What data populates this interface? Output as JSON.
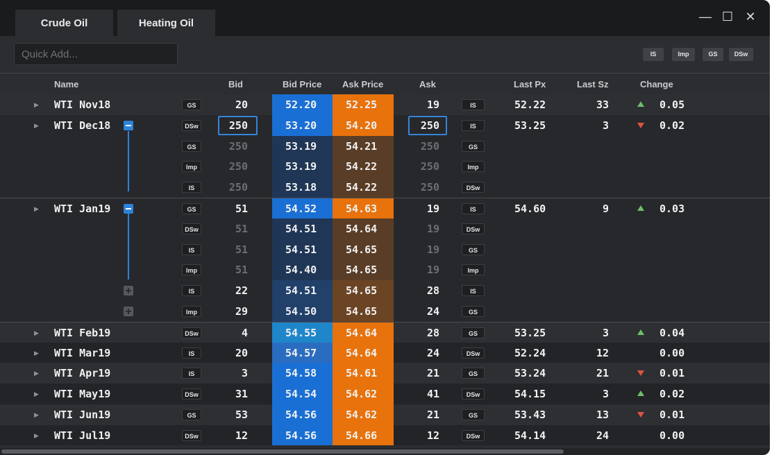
{
  "tabs": [
    {
      "label": "Crude Oil"
    },
    {
      "label": "Heating Oil"
    }
  ],
  "window_controls": {
    "minimize": "—",
    "maximize": "☐",
    "close": "✕"
  },
  "quick_add": {
    "placeholder": "Quick Add..."
  },
  "toolbar_buttons": [
    {
      "label": "IS"
    },
    {
      "label": "Imp"
    },
    {
      "label": "GS"
    },
    {
      "label": "DSw"
    }
  ],
  "columns": {
    "name": "Name",
    "bid": "Bid",
    "bid_price": "Bid Price",
    "ask_price": "Ask Price",
    "ask": "Ask",
    "last_px": "Last Px",
    "last_sz": "Last Sz",
    "change": "Change"
  },
  "colors": {
    "bid_active": "#1a6fd4",
    "ask_active": "#e8720c",
    "bid_depth": "#203656",
    "ask_depth": "#5a3d26",
    "up": "#6cc066",
    "down": "#e0533f"
  },
  "rows": [
    {
      "name": "WTI Nov18",
      "bid_src": "GS",
      "bid": "20",
      "bid_price": "52.20",
      "ask_price": "52.25",
      "ask": "19",
      "ask_src": "IS",
      "last_px": "52.22",
      "last_sz": "33",
      "dir": "up",
      "change": "0.05"
    },
    {
      "name": "WTI Dec18",
      "bid_src": "DSw",
      "bid": "250",
      "bid_price": "53.20",
      "ask_price": "54.20",
      "ask": "250",
      "ask_src": "IS",
      "last_px": "53.25",
      "last_sz": "3",
      "dir": "down",
      "change": "0.02"
    },
    {
      "bid_src": "GS",
      "bid": "250",
      "bid_price": "53.19",
      "ask_price": "54.21",
      "ask": "250",
      "ask_src": "GS"
    },
    {
      "bid_src": "Imp",
      "bid": "250",
      "bid_price": "53.19",
      "ask_price": "54.22",
      "ask": "250",
      "ask_src": "Imp"
    },
    {
      "bid_src": "IS",
      "bid": "250",
      "bid_price": "53.18",
      "ask_price": "54.22",
      "ask": "250",
      "ask_src": "DSw"
    },
    {
      "name": "WTI Jan19",
      "bid_src": "GS",
      "bid": "51",
      "bid_price": "54.52",
      "ask_price": "54.63",
      "ask": "19",
      "ask_src": "IS",
      "last_px": "54.60",
      "last_sz": "9",
      "dir": "up",
      "change": "0.03"
    },
    {
      "bid_src": "DSw",
      "bid": "51",
      "bid_price": "54.51",
      "ask_price": "54.64",
      "ask": "19",
      "ask_src": "DSw"
    },
    {
      "bid_src": "IS",
      "bid": "51",
      "bid_price": "54.51",
      "ask_price": "54.65",
      "ask": "19",
      "ask_src": "GS"
    },
    {
      "bid_src": "Imp",
      "bid": "51",
      "bid_price": "54.40",
      "ask_price": "54.65",
      "ask": "19",
      "ask_src": "Imp"
    },
    {
      "bid_src": "IS",
      "bid": "22",
      "bid_price": "54.51",
      "ask_price": "54.65",
      "ask": "28",
      "ask_src": "IS"
    },
    {
      "bid_src": "Imp",
      "bid": "29",
      "bid_price": "54.50",
      "ask_price": "54.65",
      "ask": "24",
      "ask_src": "GS"
    },
    {
      "name": "WTI Feb19",
      "bid_src": "DSw",
      "bid": "4",
      "bid_price": "54.55",
      "ask_price": "54.64",
      "ask": "28",
      "ask_src": "GS",
      "last_px": "53.25",
      "last_sz": "3",
      "dir": "up",
      "change": "0.04"
    },
    {
      "name": "WTI Mar19",
      "bid_src": "IS",
      "bid": "20",
      "bid_price": "54.57",
      "ask_price": "54.64",
      "ask": "24",
      "ask_src": "DSw",
      "last_px": "52.24",
      "last_sz": "12",
      "dir": "none",
      "change": "0.00"
    },
    {
      "name": "WTI Apr19",
      "bid_src": "IS",
      "bid": "3",
      "bid_price": "54.58",
      "ask_price": "54.61",
      "ask": "21",
      "ask_src": "GS",
      "last_px": "53.24",
      "last_sz": "21",
      "dir": "down",
      "change": "0.01"
    },
    {
      "name": "WTI May19",
      "bid_src": "DSw",
      "bid": "31",
      "bid_price": "54.54",
      "ask_price": "54.62",
      "ask": "41",
      "ask_src": "DSw",
      "last_px": "54.15",
      "last_sz": "3",
      "dir": "up",
      "change": "0.02"
    },
    {
      "name": "WTI Jun19",
      "bid_src": "GS",
      "bid": "53",
      "bid_price": "54.56",
      "ask_price": "54.62",
      "ask": "21",
      "ask_src": "GS",
      "last_px": "53.43",
      "last_sz": "13",
      "dir": "down",
      "change": "0.01"
    },
    {
      "name": "WTI Jul19",
      "bid_src": "DSw",
      "bid": "12",
      "bid_price": "54.56",
      "ask_price": "54.66",
      "ask": "12",
      "ask_src": "DSw",
      "last_px": "54.14",
      "last_sz": "24",
      "dir": "none",
      "change": "0.00"
    }
  ]
}
